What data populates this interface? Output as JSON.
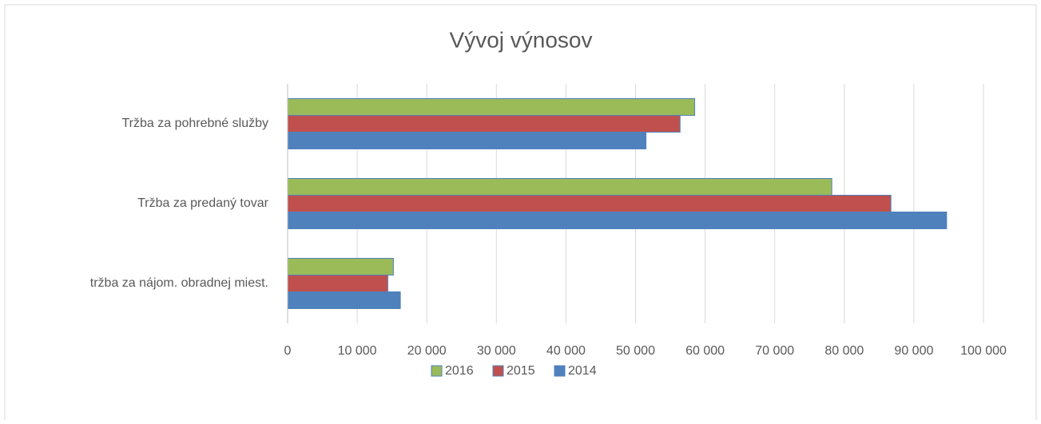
{
  "chart_data": {
    "type": "barh",
    "title": "Vývoj výnosov",
    "categories": [
      "Tržba za pohrebné služby",
      "Tržba za predaný tovar",
      "tržba za nájom. obradnej miest."
    ],
    "series": [
      {
        "name": "2016",
        "color": "#9bbb59",
        "values": [
          58500,
          78200,
          15200
        ]
      },
      {
        "name": "2015",
        "color": "#c0504d",
        "values": [
          56400,
          86700,
          14400
        ]
      },
      {
        "name": "2014",
        "color": "#4f81bd",
        "values": [
          51500,
          94700,
          16200
        ]
      }
    ],
    "xlim": [
      0,
      100000
    ],
    "xticks": [
      0,
      {
        "value": 10000,
        "label": "10 000"
      },
      {
        "value": 20000,
        "label": "20 000"
      },
      {
        "value": 30000,
        "label": "30 000"
      },
      {
        "value": 40000,
        "label": "40 000"
      },
      {
        "value": 50000,
        "label": "50 000"
      },
      {
        "value": 60000,
        "label": "60 000"
      },
      {
        "value": 70000,
        "label": "70 000"
      },
      {
        "value": 80000,
        "label": "80 000"
      },
      {
        "value": 90000,
        "label": "90 000"
      },
      {
        "value": 100000,
        "label": "100 000"
      }
    ],
    "grid": true,
    "legend": "bottom"
  }
}
